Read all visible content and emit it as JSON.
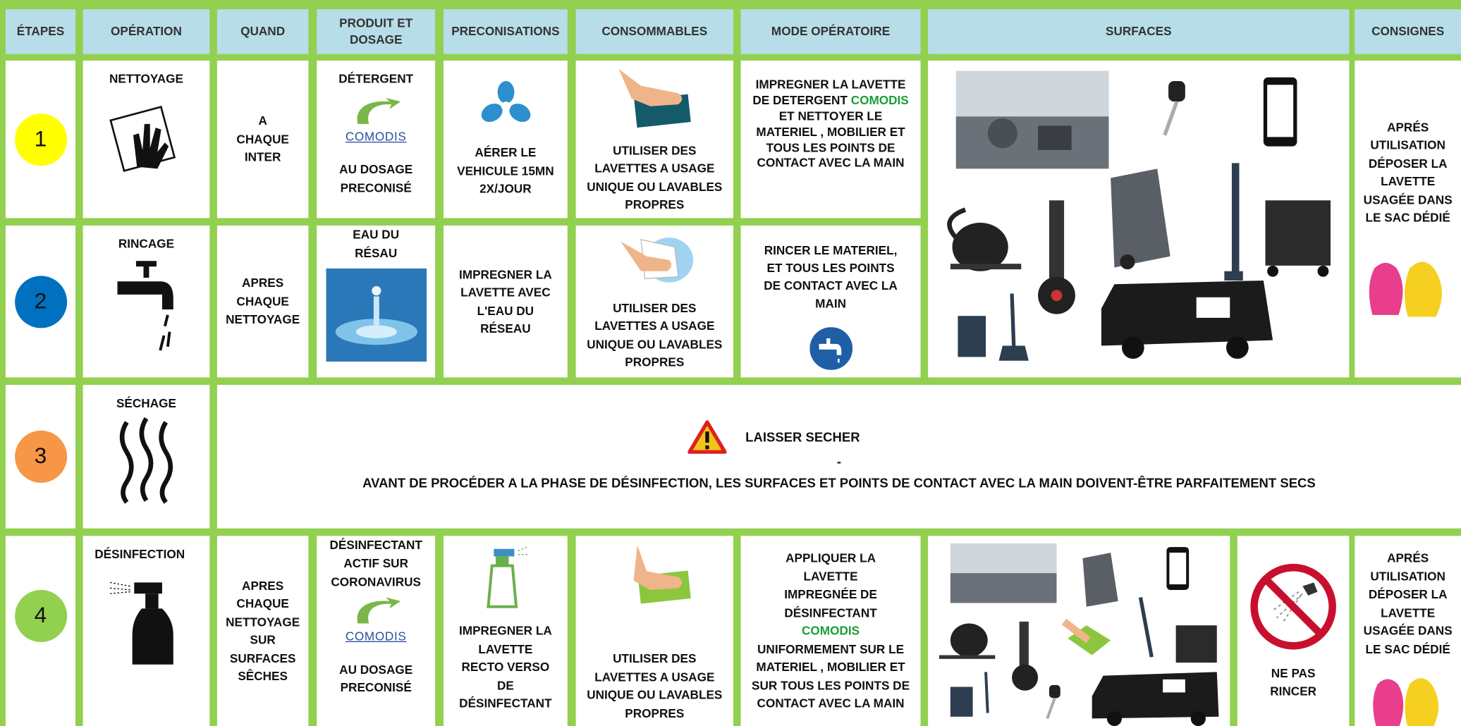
{
  "table": {
    "headers": [
      "ÉTAPES",
      "OPÉRATION",
      "QUAND",
      "PRODUIT ET DOSAGE",
      "PRECONISATIONS",
      "CONSOMMABLES",
      "MODE OPÉRATOIRE",
      "SURFACES",
      "CONSIGNES"
    ],
    "rows": [
      {
        "step": "1",
        "operation": "NETTOYAGE",
        "quand": "A CHAQUE INTER",
        "produit": [
          "DÉTERGENT",
          "COMODIS",
          "AU DOSAGE PRECONISÉ"
        ],
        "preconisations": "AÉRER LE VEHICULE 15MN 2X/JOUR",
        "consommables": "UTILISER DES LAVETTES A USAGE UNIQUE OU LAVABLES PROPRES",
        "mode": [
          "IMPREGNER LA LAVETTE DE DETERGENT",
          "COMODIS",
          "ET NETTOYER LE MATERIEL , MOBILIER ET TOUS LES POINTS DE CONTACT AVEC LA MAIN"
        ],
        "consignes": "APRÉS UTILISATION DÉPOSER LA LAVETTE USAGÉE DANS LE SAC DÉDIÉ"
      },
      {
        "step": "2",
        "operation": "RINCAGE",
        "quand": "APRES CHAQUE NETTOYAGE",
        "produit": [
          "EAU DU RÉSAU"
        ],
        "preconisations": "IMPREGNER LA LAVETTE AVEC L'EAU DU RÉSEAU",
        "consommables": "UTILISER DES LAVETTES A USAGE UNIQUE OU LAVABLES PROPRES",
        "mode": [
          "RINCER LE MATERIEL, ET TOUS LES POINTS DE CONTACT AVEC LA MAIN"
        ]
      },
      {
        "step": "3",
        "operation": "SÉCHAGE",
        "note": [
          "LAISSER SECHER",
          "-",
          "AVANT DE PROCÉDER A LA PHASE DE DÉSINFECTION, LES SURFACES ET POINTS DE CONTACT AVEC LA MAIN DOIVENT-ÊTRE PARFAITEMENT SECS"
        ]
      },
      {
        "step": "4",
        "operation": "DÉSINFECTION",
        "quand": "APRES CHAQUE NETTOYAGE SUR SURFACES SÊCHES",
        "produit": [
          "DÉSINFECTANT ACTIF SUR CORONAVIRUS",
          "COMODIS",
          "AU DOSAGE PRECONISÉ"
        ],
        "preconisations": "IMPREGNER LA LAVETTE RECTO VERSO DE DÉSINFECTANT",
        "consommables": "UTILISER DES LAVETTES A USAGE UNIQUE OU LAVABLES PROPRES",
        "mode": [
          "APPLIQUER LA LAVETTE IMPREGNÉE DE DÉSINFECTANT",
          "COMODIS",
          "UNIFORMEMENT SUR LE MATERIEL , MOBILIER ET SUR TOUS LES POINTS DE CONTACT AVEC LA MAIN"
        ],
        "warning": "NE PAS RINCER",
        "consignes": "APRÉS UTILISATION DÉPOSER LA LAVETTE USAGÉE DANS LE SAC DÉDIÉ"
      }
    ]
  }
}
